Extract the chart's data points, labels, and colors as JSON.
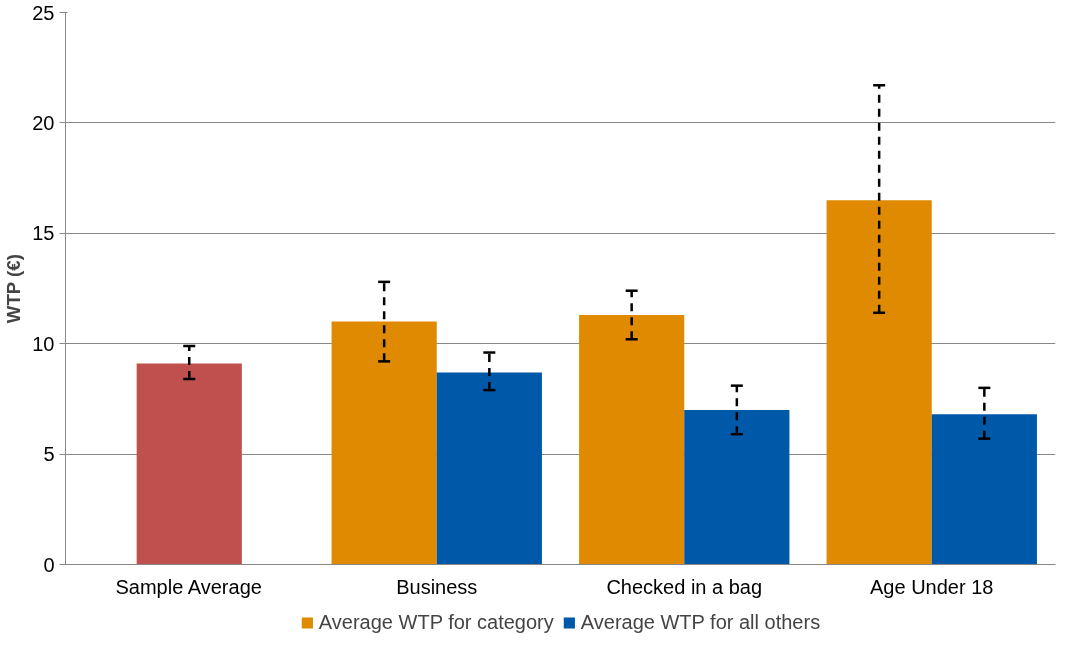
{
  "chart_data": {
    "type": "bar",
    "ylabel": "WTP (€)",
    "categories": [
      "Sample Average",
      "Business",
      "Checked in a bag",
      "Age Under 18"
    ],
    "series": [
      {
        "name": "Average WTP for category",
        "color": "#df8a00",
        "colors": [
          "#c0504d",
          "#df8a00",
          "#df8a00",
          "#df8a00"
        ],
        "values": [
          9.1,
          11.0,
          11.3,
          16.5
        ],
        "errors": [
          [
            8.4,
            9.9
          ],
          [
            9.2,
            12.8
          ],
          [
            10.2,
            12.4
          ],
          [
            11.4,
            21.7
          ]
        ]
      },
      {
        "name": "Average WTP for all others",
        "color": "#0058a8",
        "values": [
          null,
          8.7,
          7.0,
          6.8
        ],
        "errors": [
          null,
          [
            7.9,
            9.6
          ],
          [
            5.9,
            8.1
          ],
          [
            5.7,
            8.0
          ]
        ]
      }
    ],
    "ylim": [
      0,
      25
    ],
    "yticks": [
      0,
      5,
      10,
      15,
      20,
      25
    ],
    "grid": "y",
    "legend": "bottom"
  }
}
